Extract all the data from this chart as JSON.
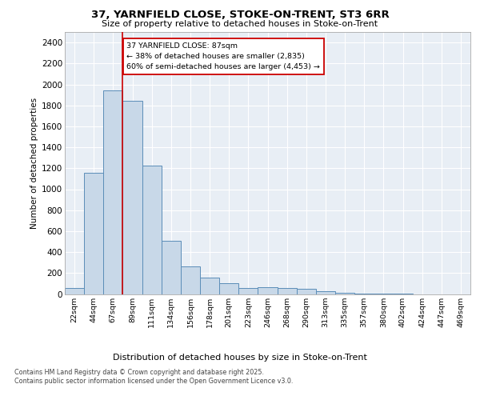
{
  "title1": "37, YARNFIELD CLOSE, STOKE-ON-TRENT, ST3 6RR",
  "title2": "Size of property relative to detached houses in Stoke-on-Trent",
  "xlabel": "Distribution of detached houses by size in Stoke-on-Trent",
  "ylabel": "Number of detached properties",
  "categories": [
    "22sqm",
    "44sqm",
    "67sqm",
    "89sqm",
    "111sqm",
    "134sqm",
    "156sqm",
    "178sqm",
    "201sqm",
    "223sqm",
    "246sqm",
    "268sqm",
    "290sqm",
    "313sqm",
    "335sqm",
    "357sqm",
    "380sqm",
    "402sqm",
    "424sqm",
    "447sqm",
    "469sqm"
  ],
  "values": [
    55,
    1155,
    1940,
    1840,
    1225,
    505,
    265,
    160,
    100,
    55,
    65,
    60,
    50,
    30,
    10,
    5,
    2,
    1,
    0,
    0,
    0
  ],
  "bar_color": "#c8d8e8",
  "bar_edge_color": "#5b8db8",
  "vline_color": "#cc0000",
  "annotation_text": "37 YARNFIELD CLOSE: 87sqm\n← 38% of detached houses are smaller (2,835)\n60% of semi-detached houses are larger (4,453) →",
  "annotation_box_edge_color": "#cc0000",
  "ylim": [
    0,
    2500
  ],
  "yticks": [
    0,
    200,
    400,
    600,
    800,
    1000,
    1200,
    1400,
    1600,
    1800,
    2000,
    2200,
    2400
  ],
  "grid_color": "#ffffff",
  "background_color": "#e8eef5",
  "footer_line1": "Contains HM Land Registry data © Crown copyright and database right 2025.",
  "footer_line2": "Contains public sector information licensed under the Open Government Licence v3.0."
}
